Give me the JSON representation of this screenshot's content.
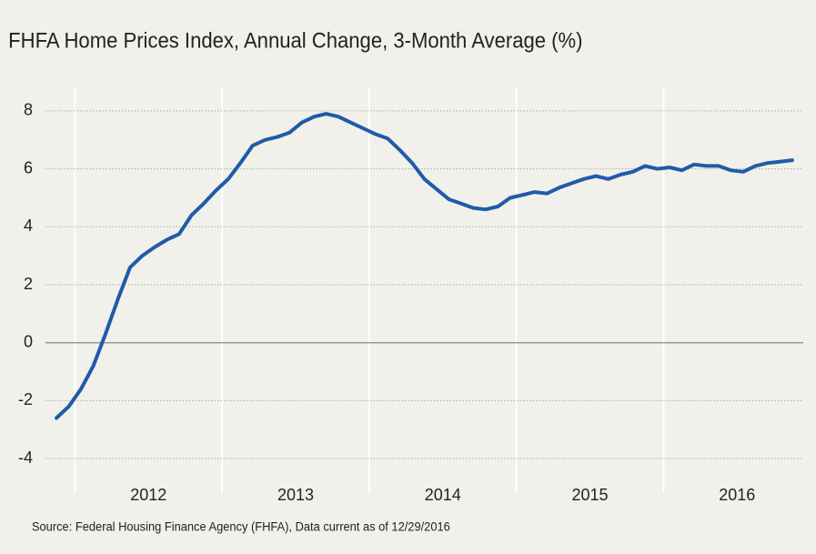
{
  "chart_data": {
    "type": "line",
    "title": "FHFA Home Prices Index, Annual Change, 3-Month Average (%)",
    "source": "Source: Federal Housing Finance Agency (FHFA), Data current as of 12/29/2016",
    "x": [
      2011.875,
      2011.958,
      2012.042,
      2012.125,
      2012.208,
      2012.292,
      2012.375,
      2012.458,
      2012.542,
      2012.625,
      2012.708,
      2012.792,
      2012.875,
      2012.958,
      2013.042,
      2013.125,
      2013.208,
      2013.292,
      2013.375,
      2013.458,
      2013.542,
      2013.625,
      2013.708,
      2013.792,
      2013.875,
      2013.958,
      2014.042,
      2014.125,
      2014.208,
      2014.292,
      2014.375,
      2014.458,
      2014.542,
      2014.625,
      2014.708,
      2014.792,
      2014.875,
      2014.958,
      2015.042,
      2015.125,
      2015.208,
      2015.292,
      2015.375,
      2015.458,
      2015.542,
      2015.625,
      2015.708,
      2015.792,
      2015.875,
      2015.958,
      2016.042,
      2016.125,
      2016.208,
      2016.292,
      2016.375,
      2016.458,
      2016.542,
      2016.625,
      2016.708,
      2016.792,
      2016.875
    ],
    "series": [
      {
        "name": "FHFA HPI annual change",
        "color": "#1f5ba8",
        "values": [
          -2.6,
          -2.2,
          -1.6,
          -0.8,
          0.3,
          1.5,
          2.6,
          3.0,
          3.3,
          3.55,
          3.75,
          4.4,
          4.8,
          5.25,
          5.65,
          6.2,
          6.8,
          7.0,
          7.1,
          7.25,
          7.6,
          7.8,
          7.9,
          7.8,
          7.6,
          7.4,
          7.2,
          7.05,
          6.65,
          6.2,
          5.65,
          5.3,
          4.95,
          4.8,
          4.65,
          4.6,
          4.7,
          5.0,
          5.1,
          5.2,
          5.15,
          5.35,
          5.5,
          5.65,
          5.75,
          5.65,
          5.8,
          5.9,
          6.1,
          6.0,
          6.05,
          5.95,
          6.15,
          6.1,
          6.1,
          5.95,
          5.9,
          6.1,
          6.2,
          6.25,
          6.3
        ]
      }
    ],
    "xlim": [
      2011.8,
      2016.95
    ],
    "xticks": [
      {
        "value": 2012.5,
        "label": "2012"
      },
      {
        "value": 2013.5,
        "label": "2013"
      },
      {
        "value": 2014.5,
        "label": "2014"
      },
      {
        "value": 2015.5,
        "label": "2015"
      },
      {
        "value": 2016.5,
        "label": "2016"
      }
    ],
    "xgrid": [
      2012,
      2013,
      2014,
      2015,
      2016
    ],
    "ylim": [
      -4.5,
      8.5
    ],
    "yticks": [
      -4,
      -2,
      0,
      2,
      4,
      6,
      8
    ],
    "grid": true
  }
}
